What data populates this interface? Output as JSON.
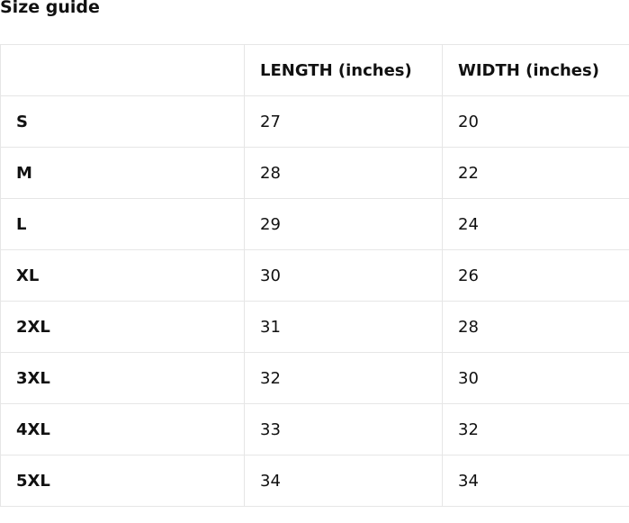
{
  "title": "Size guide",
  "table": {
    "headers": [
      "",
      "LENGTH (inches)",
      "WIDTH (inches)"
    ],
    "rows": [
      [
        "S",
        "27",
        "20"
      ],
      [
        "M",
        "28",
        "22"
      ],
      [
        "L",
        "29",
        "24"
      ],
      [
        "XL",
        "30",
        "26"
      ],
      [
        "2XL",
        "31",
        "28"
      ],
      [
        "3XL",
        "32",
        "30"
      ],
      [
        "4XL",
        "33",
        "32"
      ],
      [
        "5XL",
        "34",
        "34"
      ]
    ]
  }
}
